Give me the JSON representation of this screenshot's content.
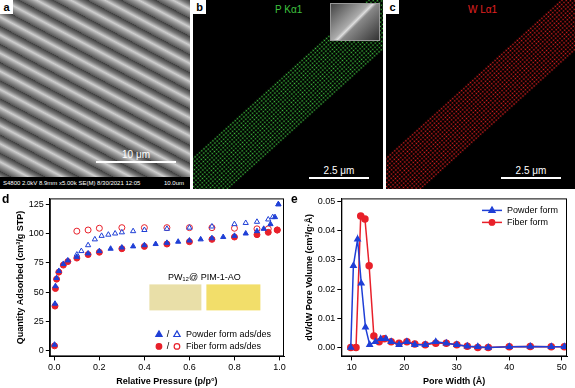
{
  "panels": [
    {
      "label": "a",
      "info": "S4800 2.0kV 8.9mm x5.00k SE(M) 8/30/2021 12:05",
      "info_scale": "10.0um",
      "scale_bar": "10 μm"
    },
    {
      "label": "b",
      "map": "P Kα1",
      "scale_bar": "2.5 μm",
      "color": "#3fc03f"
    },
    {
      "label": "c",
      "map": "W Lα1",
      "scale_bar": "2.5 μm",
      "color": "#e02020"
    }
  ],
  "chart_data": [
    {
      "label": "d",
      "type": "scatter",
      "x_label": "Relative Pressure (p/p°)",
      "y_label": "Quantity Adsorbed (cm³/g STP)",
      "xlim": [
        -0.02,
        1.02
      ],
      "xticks": [
        {
          "value": 0,
          "label": "0.0"
        },
        {
          "value": 0.2,
          "label": "0.2"
        },
        {
          "value": 0.4,
          "label": "0.4"
        },
        {
          "value": 0.6,
          "label": "0.6"
        },
        {
          "value": 0.8,
          "label": "0.8"
        },
        {
          "value": 1,
          "label": "1.0"
        }
      ],
      "ylim": [
        -5,
        130
      ],
      "yticks": [
        0,
        25,
        50,
        75,
        100,
        125
      ],
      "grid": false,
      "legend": "lower right",
      "legend_separator": "/",
      "annotations": [
        "PW₁₂@ PIM-1-AO"
      ],
      "series": [
        {
          "name": "Powder form ads/des",
          "color": "#1f3fd6",
          "marker": "triangle",
          "ads": {
            "x": [
              0.001,
              0.003,
              0.005,
              0.01,
              0.02,
              0.04,
              0.06,
              0.1,
              0.15,
              0.2,
              0.25,
              0.3,
              0.35,
              0.4,
              0.45,
              0.5,
              0.55,
              0.6,
              0.65,
              0.7,
              0.75,
              0.8,
              0.85,
              0.9,
              0.93,
              0.96,
              0.98,
              0.995
            ],
            "values": [
              5,
              40,
              55,
              62,
              68,
              74,
              77,
              80,
              83,
              85,
              87,
              88,
              89,
              90,
              91,
              92,
              93,
              94,
              95,
              96,
              97,
              98,
              100,
              102,
              104,
              108,
              114,
              125
            ]
          },
          "des": {
            "x": [
              0.995,
              0.97,
              0.95,
              0.9,
              0.85,
              0.8,
              0.7,
              0.6,
              0.5,
              0.4,
              0.35,
              0.3,
              0.27,
              0.24,
              0.21,
              0.18,
              0.15,
              0.12,
              0.1
            ],
            "values": [
              125,
              114,
              112,
              110,
              109,
              108,
              106,
              105,
              104,
              103,
              102,
              101,
              100,
              99,
              98,
              95,
              90,
              85,
              82
            ]
          }
        },
        {
          "name": "Fiber form ads/des",
          "color": "#e8202a",
          "marker": "circle",
          "ads": {
            "x": [
              0.001,
              0.003,
              0.005,
              0.01,
              0.02,
              0.04,
              0.06,
              0.1,
              0.15,
              0.2,
              0.3,
              0.4,
              0.5,
              0.6,
              0.7,
              0.8,
              0.9,
              0.95,
              0.99
            ],
            "values": [
              4,
              38,
              53,
              61,
              67,
              73,
              76,
              79,
              82,
              84,
              87,
              89,
              91,
              93,
              95,
              97,
              99,
              101,
              103
            ]
          },
          "des": {
            "x": [
              0.99,
              0.95,
              0.9,
              0.8,
              0.7,
              0.6,
              0.5,
              0.4,
              0.3,
              0.2,
              0.15,
              0.1
            ],
            "values": [
              103,
              104,
              104,
              104.5,
              105,
              105,
              105,
              105,
              105,
              104.5,
              103,
              102
            ]
          }
        }
      ]
    },
    {
      "label": "e",
      "type": "line",
      "x_label": "Pore Width (Å)",
      "y_label": "dV/dW Pore Volume (cm³/g·Å)",
      "xlim": [
        8,
        51
      ],
      "xticks": [
        10,
        20,
        30,
        40,
        50
      ],
      "ylim": [
        -0.003,
        0.051
      ],
      "yticks": [
        {
          "value": 0,
          "label": "0.00"
        },
        {
          "value": 0.01,
          "label": "0.01"
        },
        {
          "value": 0.02,
          "label": "0.02"
        },
        {
          "value": 0.03,
          "label": "0.03"
        },
        {
          "value": 0.04,
          "label": "0.04"
        },
        {
          "value": 0.05,
          "label": "0.05"
        }
      ],
      "grid": false,
      "legend": "upper right",
      "series": [
        {
          "name": "Powder form",
          "color": "#1f3fd6",
          "marker": "triangle",
          "x": [
            9.8,
            10.3,
            11.1,
            11.8,
            12.6,
            13.4,
            14.5,
            15.5,
            16.5,
            17.5,
            19,
            20.5,
            22,
            24,
            26,
            28,
            30,
            32,
            34,
            36,
            40,
            44,
            48,
            50.5
          ],
          "values": [
            0,
            0.028,
            0.037,
            0.022,
            0.007,
            0.001,
            0.002,
            0.003,
            0.003,
            0.002,
            0.001,
            0.002,
            0.001,
            0.001,
            0.002,
            0.0015,
            0.001,
            0.0005,
            0.0003,
            0,
            0.0003,
            0.0004,
            0.0003,
            0.0003
          ]
        },
        {
          "name": "Fiber form",
          "color": "#e8202a",
          "marker": "circle",
          "x": [
            9.8,
            10.8,
            11.7,
            12.5,
            13.3,
            14.2,
            15.2,
            16.2,
            17.5,
            19,
            20.5,
            22,
            24,
            26,
            28,
            30,
            32,
            34,
            36,
            40,
            44,
            48,
            50.5
          ],
          "values": [
            0,
            0,
            0.045,
            0.044,
            0.028,
            0.004,
            0.002,
            0.003,
            0.002,
            0.0015,
            0.002,
            0.0012,
            0.001,
            0.0015,
            0.0015,
            0.001,
            0.0005,
            0,
            0,
            0.0003,
            0.0004,
            0.0003,
            0.0003
          ]
        }
      ]
    }
  ]
}
